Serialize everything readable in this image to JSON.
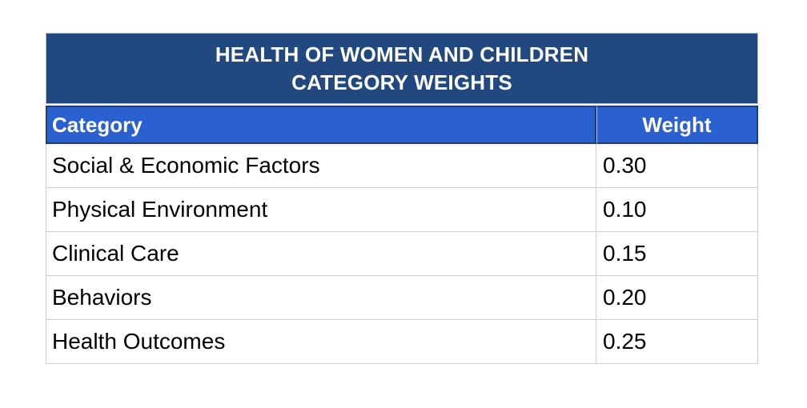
{
  "header": {
    "title_line1": "HEALTH OF WOMEN AND CHILDREN",
    "title_line2": "CATEGORY WEIGHTS"
  },
  "chart_data": {
    "type": "table",
    "title": "HEALTH OF WOMEN AND CHILDREN CATEGORY WEIGHTS",
    "columns": [
      "Category",
      "Weight"
    ],
    "rows": [
      {
        "category": "Social & Economic Factors",
        "weight": "0.30"
      },
      {
        "category": "Physical Environment",
        "weight": "0.10"
      },
      {
        "category": "Clinical Care",
        "weight": "0.15"
      },
      {
        "category": "Behaviors",
        "weight": "0.20"
      },
      {
        "category": "Health Outcomes",
        "weight": "0.25"
      }
    ],
    "weights_numeric": [
      0.3,
      0.1,
      0.15,
      0.2,
      0.25
    ]
  },
  "colors": {
    "title_bg": "#22497F",
    "header_bg": "#2A60D0",
    "header_border": "#1C3E72",
    "grid": "#CFCFCF",
    "outer_border": "#B9B9B9",
    "title_text": "#FFFFFF",
    "header_text": "#FFFFFF",
    "body_text": "#000000"
  }
}
